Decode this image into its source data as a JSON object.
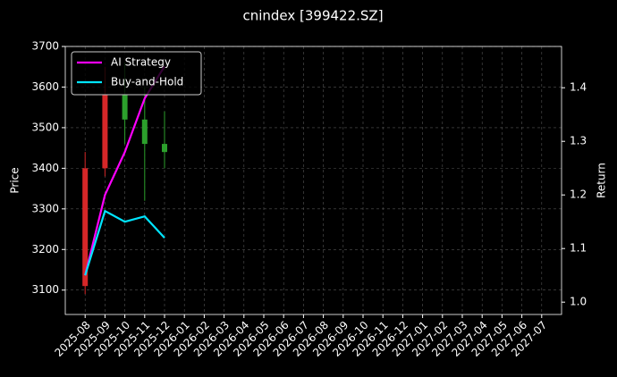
{
  "chart_data": {
    "type": "candlestick",
    "title": "cnindex [399422.SZ]",
    "y_label": "Price",
    "y2_label": "Return",
    "x": [
      "2025-08",
      "2025-09",
      "2025-10",
      "2025-11",
      "2025-12"
    ],
    "open": [
      3110,
      3400,
      3580,
      3520,
      3460
    ],
    "high": [
      3440,
      3650,
      3660,
      3600,
      3540
    ],
    "low": [
      3090,
      3380,
      3460,
      3320,
      3400
    ],
    "close": [
      3400,
      3580,
      3520,
      3460,
      3440
    ],
    "up_color": "#d62728",
    "down_color": "#2ca02c",
    "series": [
      {
        "name": "AI Strategy",
        "color": "#ff00ff",
        "axis": "y2",
        "values": [
          1.05,
          1.2,
          1.28,
          1.38,
          1.44
        ]
      },
      {
        "name": "Buy-and-Hold",
        "color": "#00e5ff",
        "axis": "y2",
        "values": [
          1.05,
          1.17,
          1.15,
          1.16,
          1.12
        ]
      }
    ],
    "xlim": [
      "2025-07",
      "2027-08"
    ],
    "xticks": [
      "2025-08",
      "2025-09",
      "2025-10",
      "2025-11",
      "2025-12",
      "2026-01",
      "2026-02",
      "2026-03",
      "2026-04",
      "2026-05",
      "2026-06",
      "2026-07",
      "2026-08",
      "2026-09",
      "2026-10",
      "2026-11",
      "2026-12",
      "2027-01",
      "2027-02",
      "2027-03",
      "2027-04",
      "2027-05",
      "2027-06",
      "2027-07"
    ],
    "ylim": [
      3040,
      3700
    ],
    "yticks": [
      3100,
      3200,
      3300,
      3400,
      3500,
      3600,
      3700
    ],
    "y2lim": [
      0.977,
      1.477
    ],
    "y2ticks": [
      {
        "value": 1,
        "label": "1.0"
      },
      1.1,
      1.2,
      1.3,
      1.4
    ],
    "grid": true,
    "legend": "upper left"
  }
}
